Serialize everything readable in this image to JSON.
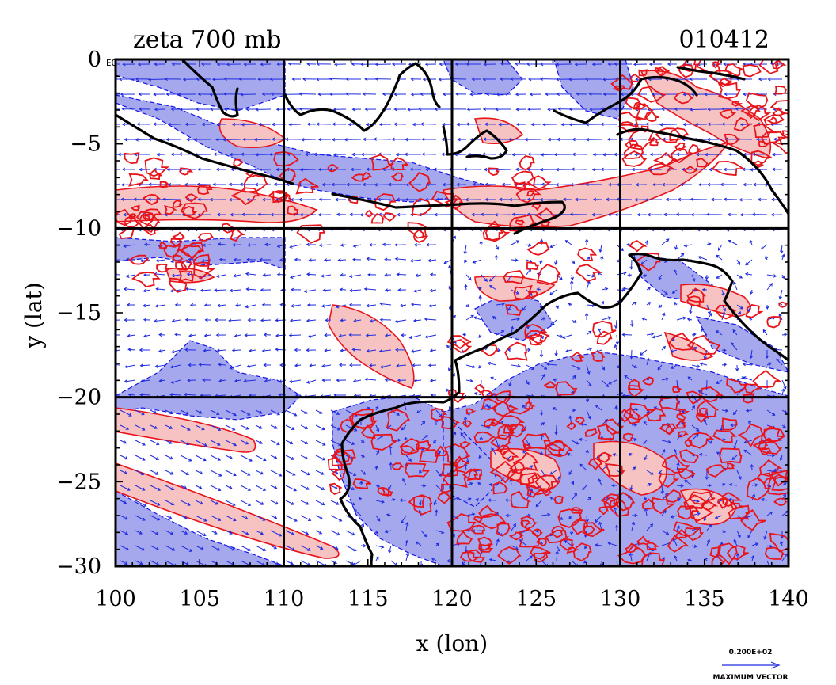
{
  "title_left": "zeta 700 mb",
  "title_right": "010412",
  "corner_label": "EQ",
  "xlabel": "x (lon)",
  "ylabel": "y (lat)",
  "legend": {
    "value": "0.200E+02",
    "caption": "MAXIMUM VECTOR"
  },
  "colors": {
    "positive_fill": "#f7c2c2",
    "positive_line": "#e8141a",
    "negative_fill": "#a6a8ee",
    "negative_line": "#1414e8",
    "vector": "#1f2be0",
    "coast": "#000000",
    "grid": "#000000"
  },
  "chart_data": {
    "type": "contour-vector-map",
    "xlim": [
      100,
      140
    ],
    "ylim": [
      -30,
      0
    ],
    "xticks": [
      100,
      105,
      110,
      115,
      120,
      125,
      130,
      135,
      140
    ],
    "yticks": [
      0,
      -5,
      -10,
      -15,
      -20,
      -25,
      -30
    ],
    "xtick_labels": [
      "100",
      "105",
      "110",
      "115",
      "120",
      "125",
      "130",
      "135",
      "140"
    ],
    "ytick_labels": [
      "0",
      "−5",
      "−10",
      "−15",
      "−20",
      "−25",
      "−30"
    ],
    "grid_lines_x": [
      110,
      120,
      130
    ],
    "grid_lines_y": [
      -10,
      -20
    ],
    "fields": [
      "relative vorticity (shaded)",
      "wind vectors"
    ]
  }
}
